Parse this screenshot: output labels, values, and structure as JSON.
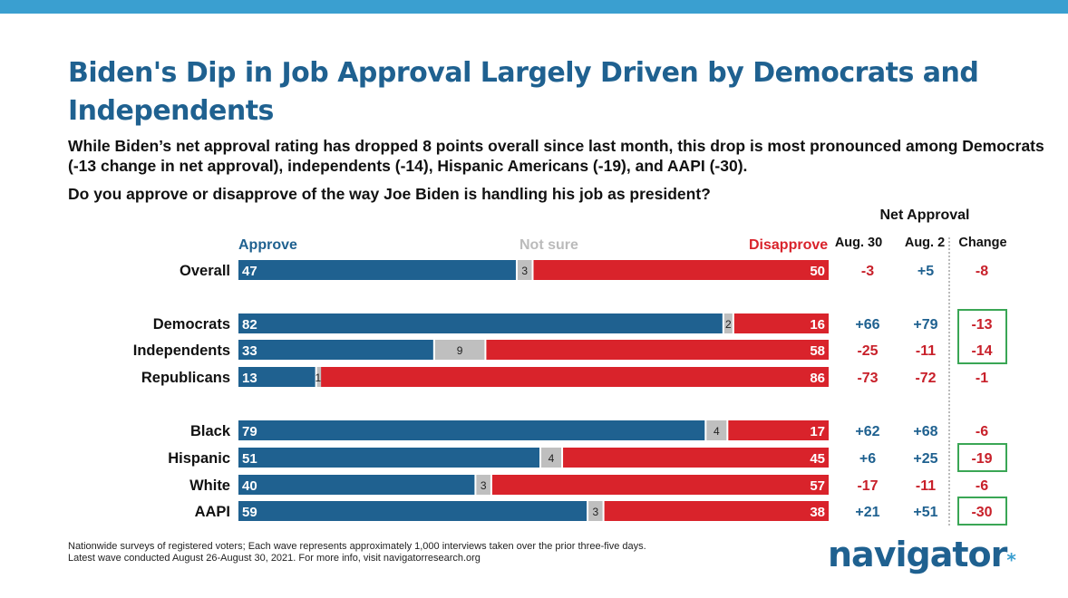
{
  "title": "Biden's Dip in Job Approval Largely Driven by Democrats and Independents",
  "subtitle": "While Biden’s net approval rating has dropped 8 points overall since last month, this drop is most pronounced among Democrats (-13 change in net approval), independents (-14), Hispanic Americans (-19), and AAPI (-30).",
  "question": "Do you approve or disapprove of the way Joe Biden is handling his job as president?",
  "net_approval_header": "Net Approval",
  "col_aug30": "Aug. 30",
  "col_aug2": "Aug. 2",
  "col_change": "Change",
  "footer_line1": "Nationwide surveys of registered voters; Each wave represents approximately 1,000 interviews taken over the prior three-five days.",
  "footer_line2": "Latest wave conducted August 26-August 30, 2021. For more info, visit navigatorresearch.org",
  "logo": "navigator",
  "logo_mark": "*",
  "colors": {
    "approve": "#1f6190",
    "not_sure": "#bfbfbf",
    "disapprove": "#d9232b",
    "highlight_box": "#3aa655",
    "negative_text": "#c8202a",
    "positive_text": "#1f6190"
  },
  "chart_data": {
    "type": "bar",
    "stacked": true,
    "orientation": "horizontal",
    "legend": [
      "Approve",
      "Not sure",
      "Disapprove"
    ],
    "categories": [
      "Overall",
      "Democrats",
      "Independents",
      "Republicans",
      "Black",
      "Hispanic",
      "White",
      "AAPI"
    ],
    "series": [
      {
        "name": "Approve",
        "values": [
          47,
          82,
          33,
          13,
          79,
          51,
          40,
          59
        ]
      },
      {
        "name": "Not sure",
        "values": [
          3,
          2,
          9,
          1,
          4,
          4,
          3,
          3
        ]
      },
      {
        "name": "Disapprove",
        "values": [
          50,
          16,
          58,
          86,
          17,
          45,
          57,
          38
        ]
      }
    ],
    "net_approval": {
      "aug30": [
        "-3",
        "+66",
        "-25",
        "-73",
        "+62",
        "+6",
        "-17",
        "+21"
      ],
      "aug2": [
        "+5",
        "+79",
        "-11",
        "-72",
        "+68",
        "+25",
        "-11",
        "+51"
      ],
      "change": [
        "-8",
        "-13",
        "-14",
        "-1",
        "-6",
        "-19",
        "-6",
        "-30"
      ]
    },
    "highlighted_changes": [
      "Democrats",
      "Independents",
      "Hispanic",
      "AAPI"
    ]
  }
}
